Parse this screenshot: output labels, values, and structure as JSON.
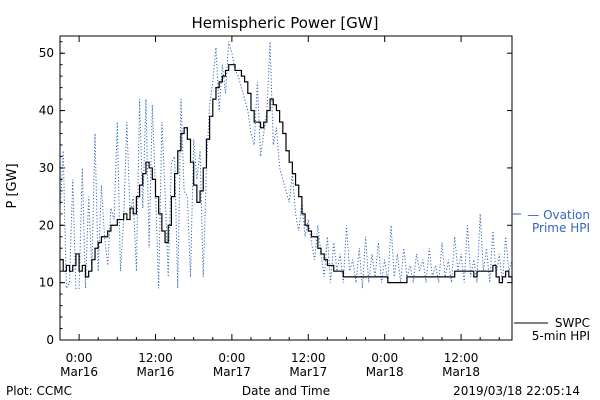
{
  "chart_data": {
    "type": "line",
    "title": "Hemispheric Power [GW]",
    "xlabel": "Date and Time",
    "ylabel": "P [GW]",
    "ylim": [
      0,
      53
    ],
    "yticks": [
      0,
      10,
      20,
      30,
      40,
      50
    ],
    "xlim_hours": [
      -3,
      68
    ],
    "xticks": [
      {
        "hour": 0,
        "time": "0:00",
        "date": "Mar16"
      },
      {
        "hour": 12,
        "time": "12:00",
        "date": "Mar16"
      },
      {
        "hour": 24,
        "time": "0:00",
        "date": "Mar17"
      },
      {
        "hour": 36,
        "time": "12:00",
        "date": "Mar17"
      },
      {
        "hour": 48,
        "time": "0:00",
        "date": "Mar18"
      },
      {
        "hour": 60,
        "time": "12:00",
        "date": "Mar18"
      }
    ],
    "grid": false,
    "series": [
      {
        "name": "SWPC 5-min HPI",
        "legend_lines": [
          "SWPC",
          "5-min HPI"
        ],
        "color": "#000000",
        "style": "solid",
        "x": [
          -3,
          -2.5,
          -2,
          -1.5,
          -1,
          -0.5,
          0,
          0.5,
          1,
          1.5,
          2,
          2.5,
          3,
          3.5,
          4,
          4.5,
          5,
          5.5,
          6,
          6.5,
          7,
          7.5,
          8,
          8.5,
          9,
          9.5,
          10,
          10.5,
          11,
          11.5,
          12,
          12.5,
          13,
          13.5,
          14,
          14.5,
          15,
          15.5,
          16,
          16.5,
          17,
          17.5,
          18,
          18.5,
          19,
          19.5,
          20,
          20.5,
          21,
          21.5,
          22,
          22.5,
          23,
          23.5,
          24,
          24.5,
          25,
          25.5,
          26,
          26.5,
          27,
          27.5,
          28,
          28.5,
          29,
          29.5,
          30,
          30.5,
          31,
          31.5,
          32,
          32.5,
          33,
          33.5,
          34,
          34.5,
          35,
          35.5,
          36,
          36.5,
          37,
          37.5,
          38,
          38.5,
          39,
          39.5,
          40,
          40.5,
          41,
          41.5,
          42,
          42.5,
          43,
          43.5,
          44,
          44.5,
          45,
          45.5,
          46,
          46.5,
          47,
          47.5,
          48,
          48.5,
          49,
          49.5,
          50,
          50.5,
          51,
          51.5,
          52,
          52.5,
          53,
          53.5,
          54,
          54.5,
          55,
          55.5,
          56,
          56.5,
          57,
          57.5,
          58,
          58.5,
          59,
          59.5,
          60,
          60.5,
          61,
          61.5,
          62,
          62.5,
          63,
          63.5,
          64,
          64.5,
          65,
          65.5,
          66,
          66.5,
          67,
          67.5,
          68
        ],
        "values": [
          14,
          12,
          13,
          12,
          13,
          15,
          12,
          13,
          11,
          12,
          14,
          16,
          17,
          18,
          18,
          19,
          20,
          20,
          21,
          21,
          22,
          21,
          23,
          22,
          25,
          27,
          29,
          31,
          30,
          28,
          25,
          22,
          19,
          17,
          20,
          25,
          29,
          33,
          36,
          37,
          35,
          31,
          27,
          24,
          26,
          30,
          35,
          39,
          42,
          44,
          45,
          46,
          47,
          48,
          48,
          47,
          47,
          46,
          45,
          43,
          40,
          38,
          38,
          37,
          38,
          40,
          42,
          41,
          40,
          38,
          36,
          33,
          31,
          29,
          27,
          25,
          22,
          20,
          19,
          18,
          18,
          16,
          15,
          14,
          13,
          13,
          12,
          12,
          12,
          11,
          11,
          11,
          11,
          11,
          11,
          11,
          11,
          11,
          11,
          11,
          11,
          11,
          11,
          10,
          10,
          10,
          10,
          10,
          10,
          11,
          11,
          11,
          11,
          11,
          11,
          11,
          11,
          11,
          11,
          11,
          11,
          11,
          11,
          11,
          12,
          12,
          12,
          12,
          12,
          12,
          11,
          12,
          12,
          12,
          12,
          12,
          13,
          11,
          10,
          11,
          12,
          11,
          10
        ]
      },
      {
        "name": "Ovation Prime HPI",
        "legend_lines": [
          "— Ovation",
          "Prime HPI"
        ],
        "color": "#3366bb",
        "style": "dotted",
        "x": [
          -3,
          -2.5,
          -2,
          -1.5,
          -1,
          -0.5,
          0,
          0.5,
          1,
          1.5,
          2,
          2.5,
          3,
          3.5,
          4,
          4.5,
          5,
          5.5,
          6,
          6.5,
          7,
          7.5,
          8,
          8.5,
          9,
          9.5,
          10,
          10.5,
          11,
          11.5,
          12,
          12.5,
          13,
          13.5,
          14,
          14.5,
          15,
          15.5,
          16,
          16.5,
          17,
          17.5,
          18,
          18.5,
          19,
          19.5,
          20,
          20.5,
          21,
          21.5,
          22,
          22.5,
          23,
          23.5,
          24,
          24.5,
          25,
          25.5,
          26,
          26.5,
          27,
          27.5,
          28,
          28.5,
          29,
          29.5,
          30,
          30.5,
          31,
          31.5,
          32,
          32.5,
          33,
          33.5,
          34,
          34.5,
          35,
          35.5,
          36,
          36.5,
          37,
          37.5,
          38,
          38.5,
          39,
          39.5,
          40,
          40.5,
          41,
          41.5,
          42,
          42.5,
          43,
          43.5,
          44,
          44.5,
          45,
          45.5,
          46,
          46.5,
          47,
          47.5,
          48,
          48.5,
          49,
          49.5,
          50,
          50.5,
          51,
          51.5,
          52,
          52.5,
          53,
          53.5,
          54,
          54.5,
          55,
          55.5,
          56,
          56.5,
          57,
          57.5,
          58,
          58.5,
          59,
          59.5,
          60,
          60.5,
          61,
          61.5,
          62,
          62.5,
          63,
          63.5,
          64,
          64.5,
          65,
          65.5,
          66,
          66.5,
          67,
          67.5,
          68
        ],
        "values": [
          22,
          33,
          9,
          10,
          28,
          9,
          9,
          30,
          9,
          25,
          12,
          36,
          12,
          27,
          18,
          13,
          23,
          21,
          38,
          12,
          21,
          38,
          22,
          25,
          12,
          42,
          23,
          42,
          16,
          41,
          26,
          9,
          38,
          26,
          11,
          31,
          32,
          9,
          42,
          26,
          25,
          11,
          35,
          28,
          33,
          11,
          30,
          41,
          45,
          51,
          40,
          48,
          43,
          52,
          50,
          47,
          46,
          44,
          42,
          40,
          36,
          34,
          45,
          32,
          36,
          40,
          52,
          34,
          37,
          30,
          28,
          26,
          24,
          29,
          22,
          19,
          24,
          18,
          21,
          17,
          14,
          20,
          15,
          11,
          18,
          10,
          17,
          12,
          15,
          10,
          20,
          12,
          14,
          10,
          16,
          9,
          18,
          10,
          15,
          11,
          17,
          10,
          14,
          10,
          20,
          11,
          15,
          10,
          16,
          11,
          13,
          10,
          15,
          12,
          14,
          10,
          16,
          11,
          13,
          10,
          17,
          11,
          14,
          10,
          18,
          12,
          15,
          10,
          20,
          11,
          14,
          10,
          22,
          12,
          16,
          10,
          19,
          11,
          15,
          10,
          18,
          12,
          14
        ]
      }
    ],
    "credit_left": "Plot: CCMC",
    "timestamp": "2019/03/18 22:05:14"
  }
}
